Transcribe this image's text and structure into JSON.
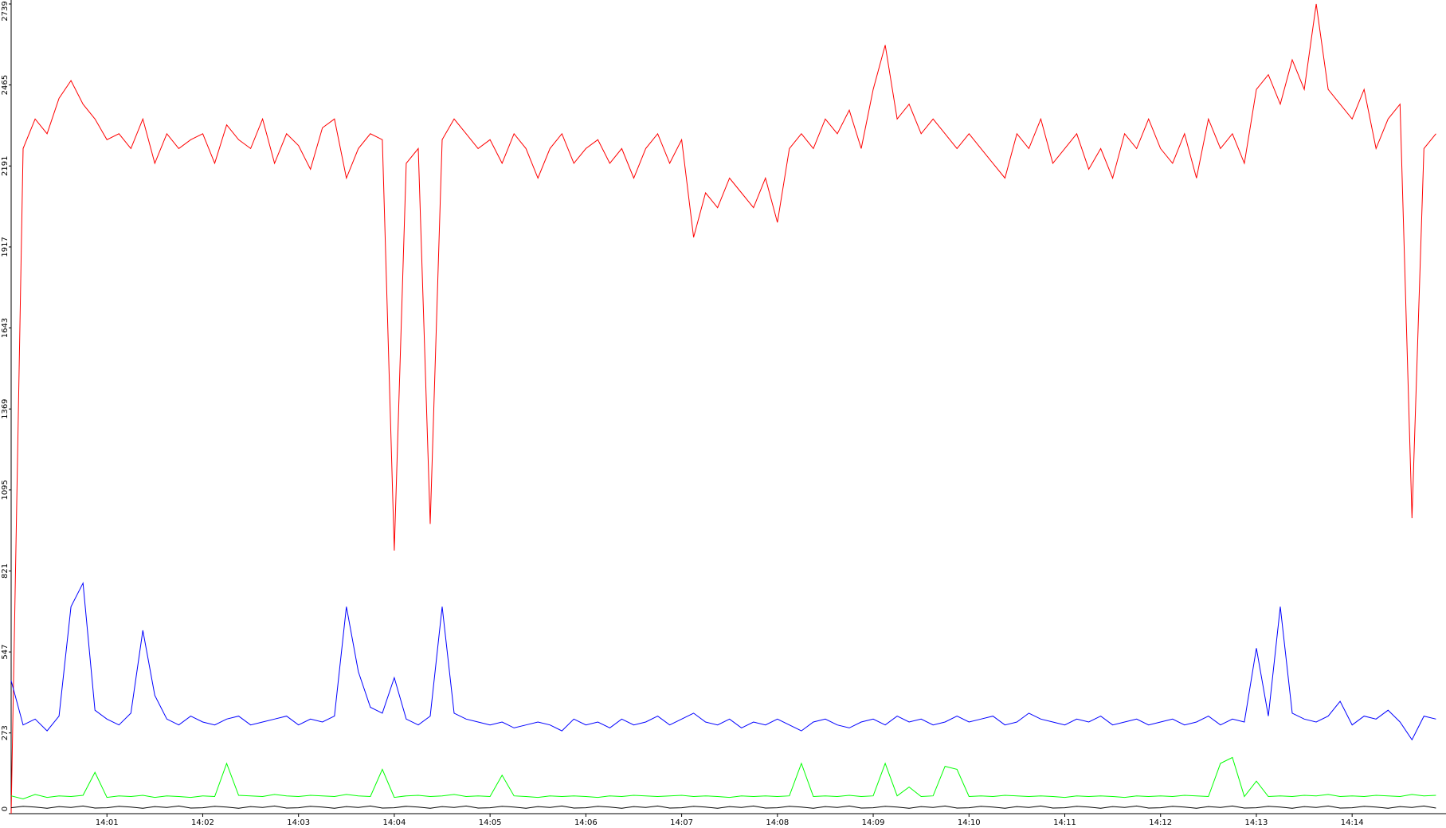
{
  "chart_data": {
    "type": "line",
    "x": [
      0,
      0.125,
      0.25,
      0.375,
      0.5,
      0.625,
      0.75,
      0.875,
      1,
      1.125,
      1.25,
      1.375,
      1.5,
      1.625,
      1.75,
      1.875,
      2,
      2.125,
      2.25,
      2.375,
      2.5,
      2.625,
      2.75,
      2.875,
      3,
      3.125,
      3.25,
      3.375,
      3.5,
      3.625,
      3.75,
      3.875,
      4,
      4.125,
      4.25,
      4.375,
      4.5,
      4.625,
      4.75,
      4.875,
      5,
      5.125,
      5.25,
      5.375,
      5.5,
      5.625,
      5.75,
      5.875,
      6,
      6.125,
      6.25,
      6.375,
      6.5,
      6.625,
      6.75,
      6.875,
      7,
      7.125,
      7.25,
      7.375,
      7.5,
      7.625,
      7.75,
      7.875,
      8,
      8.125,
      8.25,
      8.375,
      8.5,
      8.625,
      8.75,
      8.875,
      9,
      9.125,
      9.25,
      9.375,
      9.5,
      9.625,
      9.75,
      9.875,
      10,
      10.125,
      10.25,
      10.375,
      10.5,
      10.625,
      10.75,
      10.875,
      11,
      11.125,
      11.25,
      11.375,
      11.5,
      11.625,
      11.75,
      11.875,
      12,
      12.125,
      12.25,
      12.375,
      12.5,
      12.625,
      12.75,
      12.875,
      13,
      13.125,
      13.25,
      13.375,
      13.5,
      13.625,
      13.75,
      13.875,
      14,
      14.125,
      14.25,
      14.375,
      14.5,
      14.625,
      14.75,
      14.875
    ],
    "series": [
      {
        "color": "#ff0000",
        "values": [
          0,
          2250,
          2350,
          2300,
          2420,
          2480,
          2400,
          2350,
          2280,
          2300,
          2250,
          2350,
          2200,
          2300,
          2250,
          2280,
          2300,
          2200,
          2330,
          2280,
          2250,
          2350,
          2200,
          2300,
          2260,
          2180,
          2320,
          2350,
          2150,
          2250,
          2300,
          2280,
          890,
          2200,
          2250,
          980,
          2280,
          2350,
          2300,
          2250,
          2280,
          2200,
          2300,
          2250,
          2150,
          2250,
          2300,
          2200,
          2250,
          2280,
          2200,
          2250,
          2150,
          2250,
          2300,
          2200,
          2280,
          1950,
          2100,
          2050,
          2150,
          2100,
          2050,
          2150,
          2000,
          2250,
          2300,
          2250,
          2350,
          2300,
          2380,
          2250,
          2450,
          2600,
          2350,
          2400,
          2300,
          2350,
          2300,
          2250,
          2300,
          2250,
          2200,
          2150,
          2300,
          2250,
          2350,
          2200,
          2250,
          2300,
          2180,
          2250,
          2150,
          2300,
          2250,
          2350,
          2250,
          2200,
          2300,
          2150,
          2350,
          2250,
          2300,
          2200,
          2450,
          2500,
          2400,
          2550,
          2450,
          2739,
          2450,
          2400,
          2350,
          2450,
          2250,
          2350,
          2400,
          1000,
          2250,
          2300
        ]
      },
      {
        "color": "#0000ff",
        "values": [
          450,
          300,
          320,
          280,
          330,
          700,
          780,
          350,
          320,
          300,
          340,
          620,
          400,
          320,
          300,
          330,
          310,
          300,
          320,
          330,
          300,
          310,
          320,
          330,
          300,
          320,
          310,
          330,
          700,
          480,
          360,
          340,
          460,
          320,
          300,
          330,
          700,
          340,
          320,
          310,
          300,
          310,
          290,
          300,
          310,
          300,
          280,
          320,
          300,
          310,
          290,
          320,
          300,
          310,
          330,
          300,
          320,
          340,
          310,
          300,
          320,
          290,
          310,
          300,
          320,
          300,
          280,
          310,
          320,
          300,
          290,
          310,
          320,
          300,
          330,
          310,
          320,
          300,
          310,
          330,
          310,
          320,
          330,
          300,
          310,
          340,
          320,
          310,
          300,
          320,
          310,
          330,
          300,
          310,
          320,
          300,
          310,
          320,
          300,
          310,
          330,
          300,
          320,
          310,
          560,
          330,
          700,
          340,
          320,
          310,
          330,
          380,
          300,
          330,
          320,
          350,
          310,
          250,
          330,
          320
        ]
      },
      {
        "color": "#00ff00",
        "values": [
          60,
          50,
          65,
          55,
          60,
          58,
          62,
          140,
          55,
          60,
          58,
          62,
          55,
          60,
          58,
          55,
          60,
          58,
          170,
          62,
          60,
          58,
          65,
          60,
          58,
          62,
          60,
          58,
          65,
          60,
          58,
          150,
          55,
          60,
          62,
          58,
          60,
          65,
          58,
          60,
          58,
          130,
          60,
          58,
          55,
          60,
          58,
          60,
          58,
          55,
          60,
          58,
          62,
          60,
          58,
          60,
          62,
          58,
          60,
          58,
          55,
          60,
          58,
          60,
          58,
          60,
          170,
          58,
          60,
          58,
          62,
          58,
          60,
          170,
          60,
          90,
          58,
          60,
          160,
          150,
          58,
          60,
          58,
          62,
          60,
          58,
          60,
          58,
          55,
          60,
          58,
          60,
          58,
          55,
          60,
          58,
          60,
          58,
          62,
          60,
          58,
          170,
          190,
          58,
          110,
          58,
          60,
          58,
          62,
          60,
          65,
          58,
          60,
          58,
          62,
          60,
          58,
          65,
          60,
          62
        ]
      },
      {
        "color": "#000000",
        "values": [
          20,
          25,
          22,
          18,
          24,
          21,
          26,
          19,
          20,
          25,
          22,
          18,
          24,
          21,
          26,
          19,
          20,
          25,
          22,
          18,
          24,
          21,
          26,
          19,
          20,
          25,
          22,
          18,
          24,
          21,
          26,
          19,
          20,
          25,
          22,
          18,
          24,
          21,
          26,
          19,
          20,
          25,
          22,
          18,
          24,
          21,
          26,
          19,
          20,
          25,
          22,
          18,
          24,
          21,
          26,
          19,
          20,
          25,
          22,
          18,
          24,
          21,
          26,
          19,
          20,
          25,
          22,
          18,
          24,
          21,
          26,
          19,
          20,
          25,
          22,
          18,
          24,
          21,
          26,
          19,
          20,
          25,
          22,
          18,
          24,
          21,
          26,
          19,
          20,
          25,
          22,
          18,
          24,
          21,
          26,
          19,
          20,
          25,
          22,
          18,
          24,
          21,
          26,
          19,
          20,
          25,
          22,
          18,
          24,
          21,
          26,
          19,
          20,
          25,
          22,
          18,
          24,
          21,
          26,
          19
        ]
      }
    ],
    "xlim": [
      0,
      14.98
    ],
    "xticks": [
      {
        "value": 1,
        "label": "14:01"
      },
      {
        "value": 2,
        "label": "14:02"
      },
      {
        "value": 3,
        "label": "14:03"
      },
      {
        "value": 4,
        "label": "14:04"
      },
      {
        "value": 5,
        "label": "14:05"
      },
      {
        "value": 6,
        "label": "14:06"
      },
      {
        "value": 7,
        "label": "14:07"
      },
      {
        "value": 8,
        "label": "14:08"
      },
      {
        "value": 9,
        "label": "14:09"
      },
      {
        "value": 10,
        "label": "14:10"
      },
      {
        "value": 11,
        "label": "14:11"
      },
      {
        "value": 12,
        "label": "14:12"
      },
      {
        "value": 13,
        "label": "14:13"
      },
      {
        "value": 14,
        "label": "14:14"
      }
    ],
    "ylim": [
      0,
      2739
    ],
    "yticks": [
      0,
      273,
      547,
      821,
      1095,
      1369,
      1643,
      1917,
      2191,
      2465,
      2739
    ]
  }
}
